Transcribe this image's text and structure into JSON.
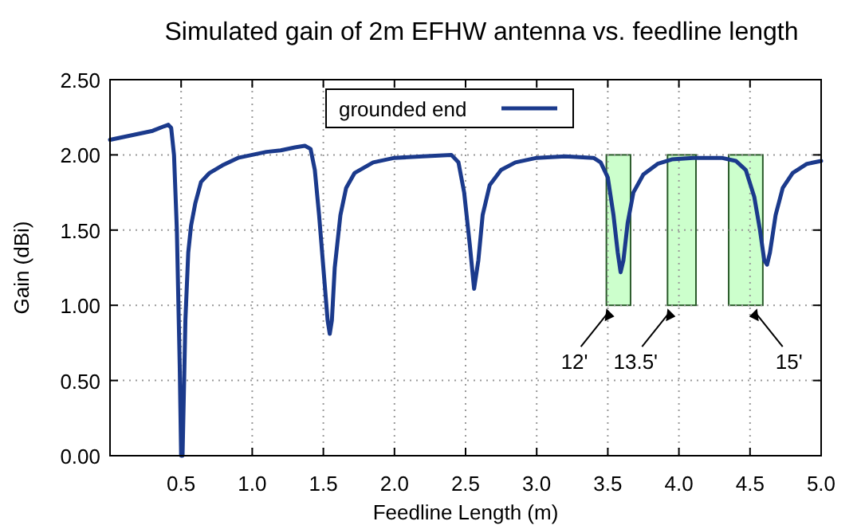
{
  "chart_data": {
    "type": "line",
    "title": "Simulated gain of 2m EFHW antenna vs. feedline length",
    "xlabel": "Feedline Length (m)",
    "ylabel": "Gain (dBi)",
    "xlim": [
      0,
      5
    ],
    "xticks": [
      0.5,
      {
        "value": 1,
        "label": "1.0"
      },
      1.5,
      {
        "value": 2,
        "label": "2.0"
      },
      2.5,
      {
        "value": 3,
        "label": "3.0"
      },
      3.5,
      {
        "value": 4,
        "label": "4.0"
      },
      4.5,
      {
        "value": 5,
        "label": "5.0"
      }
    ],
    "ylim": [
      0,
      2.5
    ],
    "yticks": [
      {
        "value": 0,
        "label": "0.00"
      },
      {
        "value": 0.5,
        "label": "0.50"
      },
      {
        "value": 1,
        "label": "1.00"
      },
      {
        "value": 1.5,
        "label": "1.50"
      },
      {
        "value": 2,
        "label": "2.00"
      },
      {
        "value": 2.5,
        "label": "2.50"
      }
    ],
    "grid": true,
    "legend": "top",
    "line_style": "solid",
    "marker": "none",
    "x": [
      0,
      0.1,
      0.2,
      0.3,
      0.38,
      0.41,
      0.43,
      0.45,
      0.47,
      0.49,
      0.5,
      0.51,
      0.53,
      0.55,
      0.57,
      0.6,
      0.64,
      0.7,
      0.79,
      0.9,
      1.0,
      1.1,
      1.2,
      1.3,
      1.37,
      1.41,
      1.44,
      1.47,
      1.5,
      1.53,
      1.545,
      1.56,
      1.58,
      1.62,
      1.66,
      1.72,
      1.85,
      2.0,
      2.2,
      2.4,
      2.45,
      2.49,
      2.53,
      2.56,
      2.59,
      2.62,
      2.67,
      2.75,
      2.85,
      3.0,
      3.2,
      3.4,
      3.45,
      3.5,
      3.54,
      3.57,
      3.59,
      3.61,
      3.64,
      3.68,
      3.75,
      3.85,
      3.95,
      4.1,
      4.3,
      4.4,
      4.47,
      4.53,
      4.57,
      4.6,
      4.62,
      4.64,
      4.68,
      4.73,
      4.8,
      4.9,
      5.0
    ],
    "series": [
      {
        "name": "grounded end",
        "color": "#1b3a8c",
        "values": [
          2.1,
          2.12,
          2.14,
          2.16,
          2.19,
          2.2,
          2.18,
          2.0,
          1.5,
          0.6,
          0.0,
          0.0,
          0.9,
          1.35,
          1.53,
          1.68,
          1.82,
          1.88,
          1.93,
          1.98,
          2.0,
          2.02,
          2.03,
          2.05,
          2.06,
          2.04,
          1.9,
          1.6,
          1.25,
          0.9,
          0.81,
          0.9,
          1.25,
          1.6,
          1.78,
          1.88,
          1.95,
          1.98,
          1.99,
          2.0,
          1.95,
          1.75,
          1.4,
          1.11,
          1.3,
          1.6,
          1.8,
          1.9,
          1.95,
          1.98,
          1.99,
          1.98,
          1.95,
          1.85,
          1.6,
          1.35,
          1.22,
          1.3,
          1.55,
          1.75,
          1.87,
          1.94,
          1.97,
          1.98,
          1.98,
          1.96,
          1.9,
          1.72,
          1.5,
          1.3,
          1.27,
          1.35,
          1.6,
          1.78,
          1.88,
          1.94,
          1.96
        ]
      }
    ],
    "bands": [
      {
        "axis": "x",
        "from": 3.49,
        "to": 3.66,
        "color": "#ccffcc"
      },
      {
        "axis": "x",
        "from": 3.92,
        "to": 4.12,
        "color": "#ccffcc"
      },
      {
        "axis": "x",
        "from": 4.35,
        "to": 4.59,
        "color": "#ccffcc"
      }
    ],
    "annotations": [
      {
        "text": "12'",
        "x": 3.49,
        "y": 1.0
      },
      {
        "text": "13.5'",
        "x": 3.92,
        "y": 1.0
      },
      {
        "text": "15'",
        "x": 4.55,
        "y": 1.0
      }
    ]
  }
}
